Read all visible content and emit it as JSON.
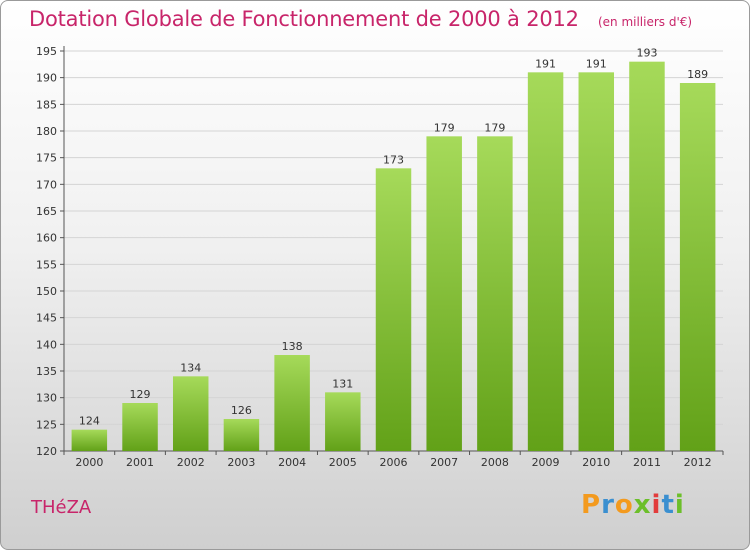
{
  "header": {
    "title": "Dotation Globale de Fonctionnement de 2000 à 2012",
    "subtitle": "(en milliers d'€)"
  },
  "footer": {
    "commune": "THéZA",
    "logo_text": "Proxiti"
  },
  "colors": {
    "title": "#c8256a",
    "bar_light": "#a6da5a",
    "bar_dark": "#62a118",
    "logo_letters": [
      "#f39a1e",
      "#3a8fd0",
      "#f39a1e",
      "#6cbf2a",
      "#e23c3c",
      "#3a8fd0",
      "#6cbf2a"
    ]
  },
  "chart_data": {
    "type": "bar",
    "title": "Dotation Globale de Fonctionnement de 2000 à 2012",
    "subtitle": "(en milliers d'€)",
    "categories": [
      "2000",
      "2001",
      "2002",
      "2003",
      "2004",
      "2005",
      "2006",
      "2007",
      "2008",
      "2009",
      "2010",
      "2011",
      "2012"
    ],
    "values": [
      124,
      129,
      134,
      126,
      138,
      131,
      173,
      179,
      179,
      191,
      191,
      193,
      189
    ],
    "ylim": [
      120,
      195
    ],
    "yticks": [
      120,
      125,
      130,
      135,
      140,
      145,
      150,
      155,
      160,
      165,
      170,
      175,
      180,
      185,
      190,
      195
    ],
    "grid": true,
    "data_labels": true
  }
}
